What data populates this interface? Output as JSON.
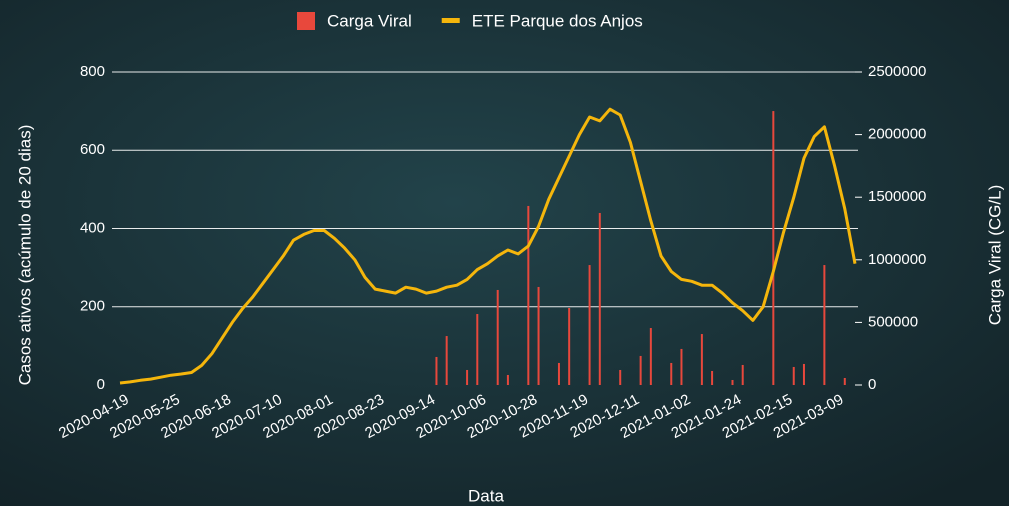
{
  "chart_data": {
    "type": "combo",
    "xlabel": "Data",
    "ylabel": "Casos ativos (acúmulo de 20 dias)",
    "y2label": "Carga Viral (CG/L)",
    "categories": [
      "2020-04-19",
      null,
      null,
      null,
      null,
      "2020-05-25",
      null,
      null,
      null,
      null,
      "2020-06-18",
      null,
      null,
      null,
      null,
      "2020-07-10",
      null,
      null,
      null,
      null,
      "2020-08-01",
      null,
      null,
      null,
      null,
      "2020-08-23",
      null,
      null,
      null,
      null,
      "2020-09-14",
      null,
      null,
      null,
      null,
      "2020-10-06",
      null,
      null,
      null,
      null,
      "2020-10-28",
      null,
      null,
      null,
      null,
      "2020-11-19",
      null,
      null,
      null,
      null,
      "2020-12-11",
      null,
      null,
      null,
      null,
      "2021-01-02",
      null,
      null,
      null,
      null,
      "2021-01-24",
      null,
      null,
      null,
      null,
      "2021-02-15",
      null,
      null,
      null,
      null,
      "2021-03-09",
      null,
      null
    ],
    "series": [
      {
        "name": "Carga Viral",
        "type": "bar",
        "axis": "y2",
        "color": "#e8483c",
        "values": [
          null,
          null,
          null,
          null,
          null,
          null,
          null,
          null,
          null,
          null,
          null,
          null,
          null,
          null,
          null,
          null,
          null,
          null,
          null,
          null,
          null,
          null,
          null,
          null,
          null,
          null,
          null,
          null,
          null,
          null,
          null,
          224000,
          391000,
          null,
          120000,
          567000,
          null,
          759000,
          80000,
          null,
          1430000,
          783000,
          null,
          176000,
          615000,
          null,
          958000,
          1374000,
          null,
          120000,
          null,
          232000,
          455000,
          null,
          176000,
          288000,
          null,
          407000,
          112000,
          null,
          40000,
          160000,
          null,
          null,
          2188000,
          null,
          144000,
          168000,
          null,
          958000,
          null,
          56000,
          null
        ]
      },
      {
        "name": "ETE Parque dos Anjos",
        "type": "line",
        "color": "#f5b60c",
        "values": [
          5,
          8,
          12,
          15,
          20,
          25,
          28,
          32,
          50,
          80,
          120,
          160,
          195,
          225,
          260,
          295,
          330,
          370,
          385,
          395,
          395,
          375,
          350,
          320,
          275,
          245,
          240,
          235,
          250,
          245,
          235,
          240,
          250,
          255,
          270,
          295,
          310,
          330,
          345,
          335,
          355,
          405,
          475,
          530,
          585,
          640,
          685,
          675,
          705,
          690,
          620,
          520,
          420,
          330,
          290,
          270,
          265,
          255,
          255,
          235,
          210,
          190,
          165,
          200,
          290,
          390,
          480,
          580,
          635,
          660,
          560,
          450,
          310
        ]
      }
    ],
    "ylim": [
      0,
      800
    ],
    "yticks": [
      0,
      200,
      400,
      600,
      800
    ],
    "y2lim": [
      0,
      2500000
    ],
    "y2ticks": [
      0,
      500000,
      1000000,
      1500000,
      2000000,
      2500000
    ],
    "grid": true,
    "legend": "top"
  }
}
